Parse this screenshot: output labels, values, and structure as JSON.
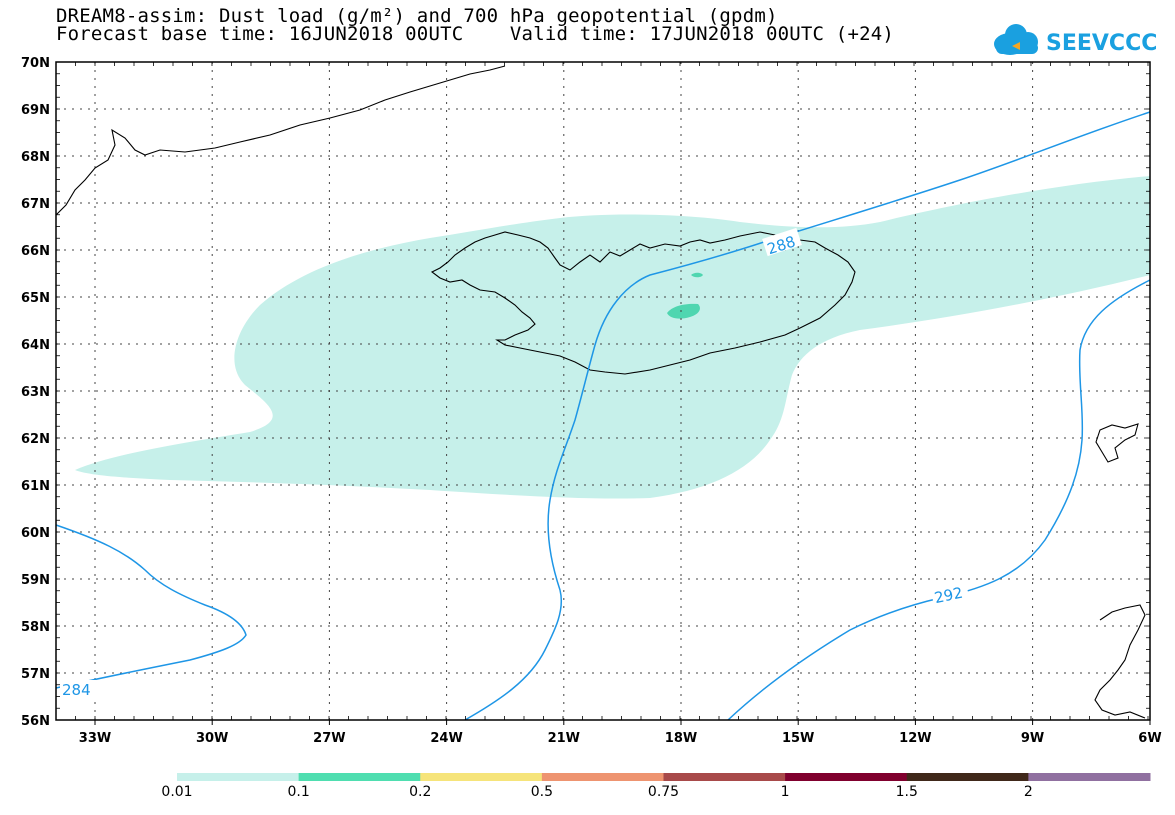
{
  "header": {
    "title_line1": "DREAM8-assim: Dust load (g/m²) and 700 hPa geopotential (gpdm)",
    "title_line2": "Forecast base time: 16JUN2018 00UTC    Valid time: 17JUN2018 00UTC (+24)"
  },
  "logo": {
    "text": "SEEVCCC",
    "icon": "cloud-icon",
    "color": "#1aa0e0"
  },
  "map": {
    "lat_labels": [
      "70N",
      "69N",
      "68N",
      "67N",
      "66N",
      "65N",
      "64N",
      "63N",
      "62N",
      "61N",
      "60N",
      "59N",
      "58N",
      "57N",
      "56N"
    ],
    "lon_labels": [
      "33W",
      "30W",
      "27W",
      "24W",
      "21W",
      "18W",
      "15W",
      "12W",
      "9W",
      "6W"
    ],
    "contour_labels": [
      "288",
      "292",
      "284"
    ],
    "contour_color": "#1e96e6",
    "dust_colors": {
      "low": "#c6f0ea",
      "mid": "#4fd6b0"
    }
  },
  "colorbar": {
    "labels": [
      "0.01",
      "0.1",
      "0.2",
      "0.5",
      "0.75",
      "1",
      "1.5",
      "2"
    ],
    "colors": [
      "#c6f0ea",
      "#4fdeb0",
      "#f6e47a",
      "#ee9470",
      "#a84a4a",
      "#80002e",
      "#40281a",
      "#9070a0"
    ]
  }
}
